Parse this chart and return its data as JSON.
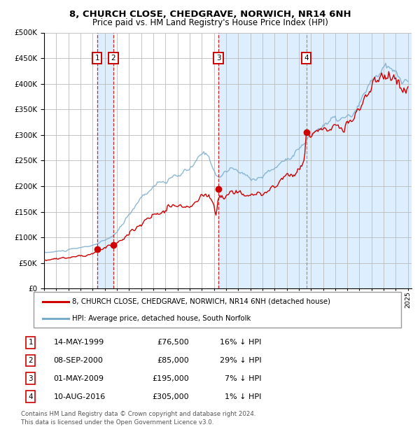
{
  "title": "8, CHURCH CLOSE, CHEDGRAVE, NORWICH, NR14 6NH",
  "subtitle": "Price paid vs. HM Land Registry's House Price Index (HPI)",
  "legend_line1": "8, CHURCH CLOSE, CHEDGRAVE, NORWICH, NR14 6NH (detached house)",
  "legend_line2": "HPI: Average price, detached house, South Norfolk",
  "footer1": "Contains HM Land Registry data © Crown copyright and database right 2024.",
  "footer2": "This data is licensed under the Open Government Licence v3.0.",
  "sale_dates_text": [
    "14-MAY-1999",
    "08-SEP-2000",
    "01-MAY-2009",
    "10-AUG-2016"
  ],
  "sale_prices": [
    76500,
    85000,
    195000,
    305000
  ],
  "sale_prices_text": [
    "£76,500",
    "£85,000",
    "£195,000",
    "£305,000"
  ],
  "sale_labels": [
    "1",
    "2",
    "3",
    "4"
  ],
  "sale_hpi_pct": [
    "16% ↓ HPI",
    "29% ↓ HPI",
    "7% ↓ HPI",
    "1% ↓ HPI"
  ],
  "sale_decimal": [
    1999.37,
    2000.71,
    2009.37,
    2016.62
  ],
  "red_color": "#cc0000",
  "blue_color": "#7aaccc",
  "bg_highlight": "#ddeeff",
  "ylim": [
    0,
    500000
  ],
  "yticks": [
    0,
    50000,
    100000,
    150000,
    200000,
    250000,
    300000,
    350000,
    400000,
    450000,
    500000
  ],
  "xlim_start": 1995.0,
  "xlim_end": 2025.3
}
